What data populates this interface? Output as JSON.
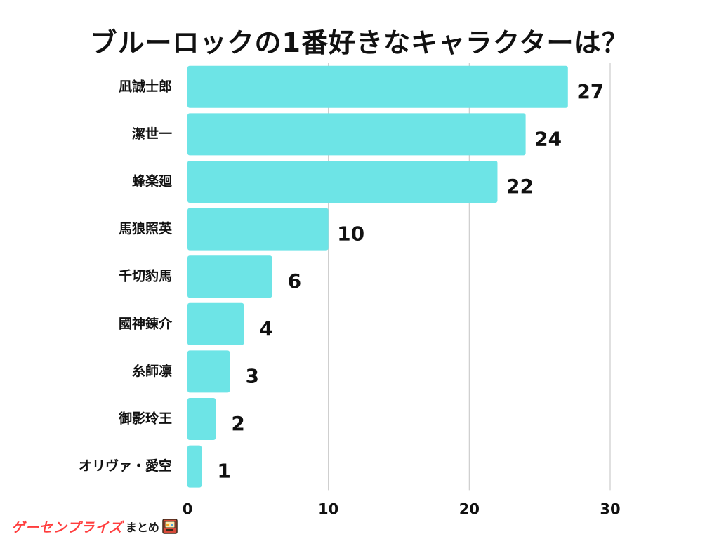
{
  "chart_data": {
    "type": "bar",
    "orientation": "horizontal",
    "title": "ブルーロックの1番好きなキャラクターは？",
    "categories": [
      "凪誠士郎",
      "潔世一",
      "蜂楽廻",
      "馬狼照英",
      "千切豹馬",
      "國神錬介",
      "糸師凛",
      "御影玲王",
      "オリヴァ・愛空"
    ],
    "values": [
      27,
      24,
      22,
      10,
      6,
      4,
      3,
      2,
      1
    ],
    "xlim": [
      0,
      30
    ],
    "xticks": [
      0,
      10,
      20,
      30
    ],
    "grid": "vertical",
    "bar_color": "#6de4e6",
    "gridline_color": "#cccccc",
    "label_color": "#111111"
  },
  "footer": {
    "logo_main": "ゲーセンプライズ",
    "logo_sub": "まとめ"
  }
}
